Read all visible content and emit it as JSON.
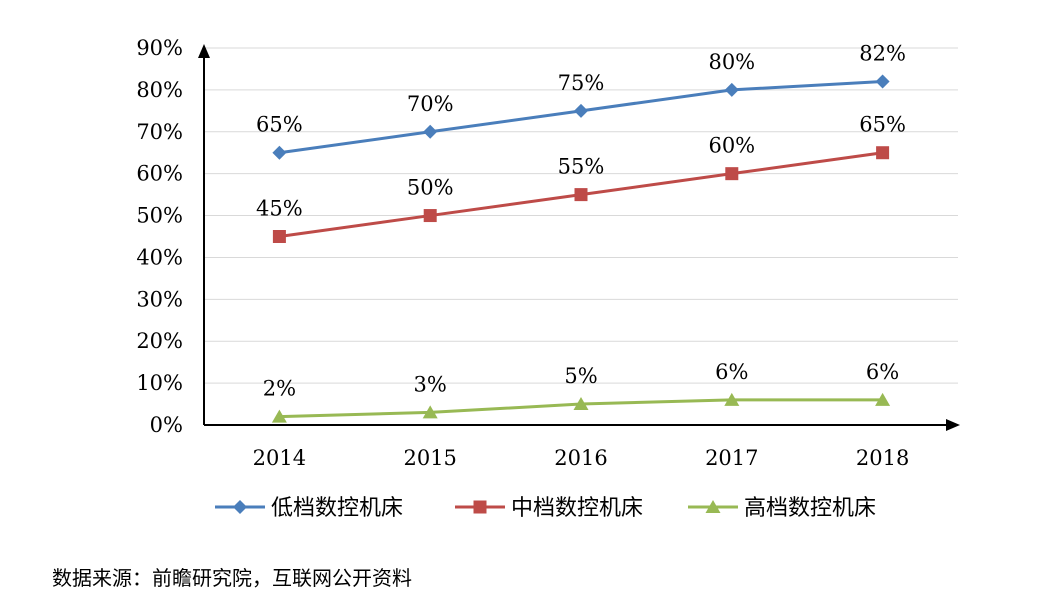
{
  "chart_data": {
    "type": "line",
    "title": "",
    "xlabel": "",
    "ylabel": "",
    "categories": [
      "2014",
      "2015",
      "2016",
      "2017",
      "2018"
    ],
    "ylim": [
      0,
      90
    ],
    "yticks": [
      "0%",
      "10%",
      "20%",
      "30%",
      "40%",
      "50%",
      "60%",
      "70%",
      "80%",
      "90%"
    ],
    "grid": true,
    "legend_position": "bottom",
    "series": [
      {
        "name": "低档数控机床",
        "values": [
          65,
          70,
          75,
          80,
          82
        ],
        "labels": [
          "65%",
          "70%",
          "75%",
          "80%",
          "82%"
        ],
        "color": "#4a7ebb",
        "marker": "diamond"
      },
      {
        "name": "中档数控机床",
        "values": [
          45,
          50,
          55,
          60,
          65
        ],
        "labels": [
          "45%",
          "50%",
          "55%",
          "60%",
          "65%"
        ],
        "color": "#be4b48",
        "marker": "square"
      },
      {
        "name": "高档数控机床",
        "values": [
          2,
          3,
          5,
          6,
          6
        ],
        "labels": [
          "2%",
          "3%",
          "5%",
          "6%",
          "6%"
        ],
        "color": "#98b954",
        "marker": "triangle"
      }
    ]
  },
  "source_text": "数据来源：前瞻研究院，互联网公开资料"
}
